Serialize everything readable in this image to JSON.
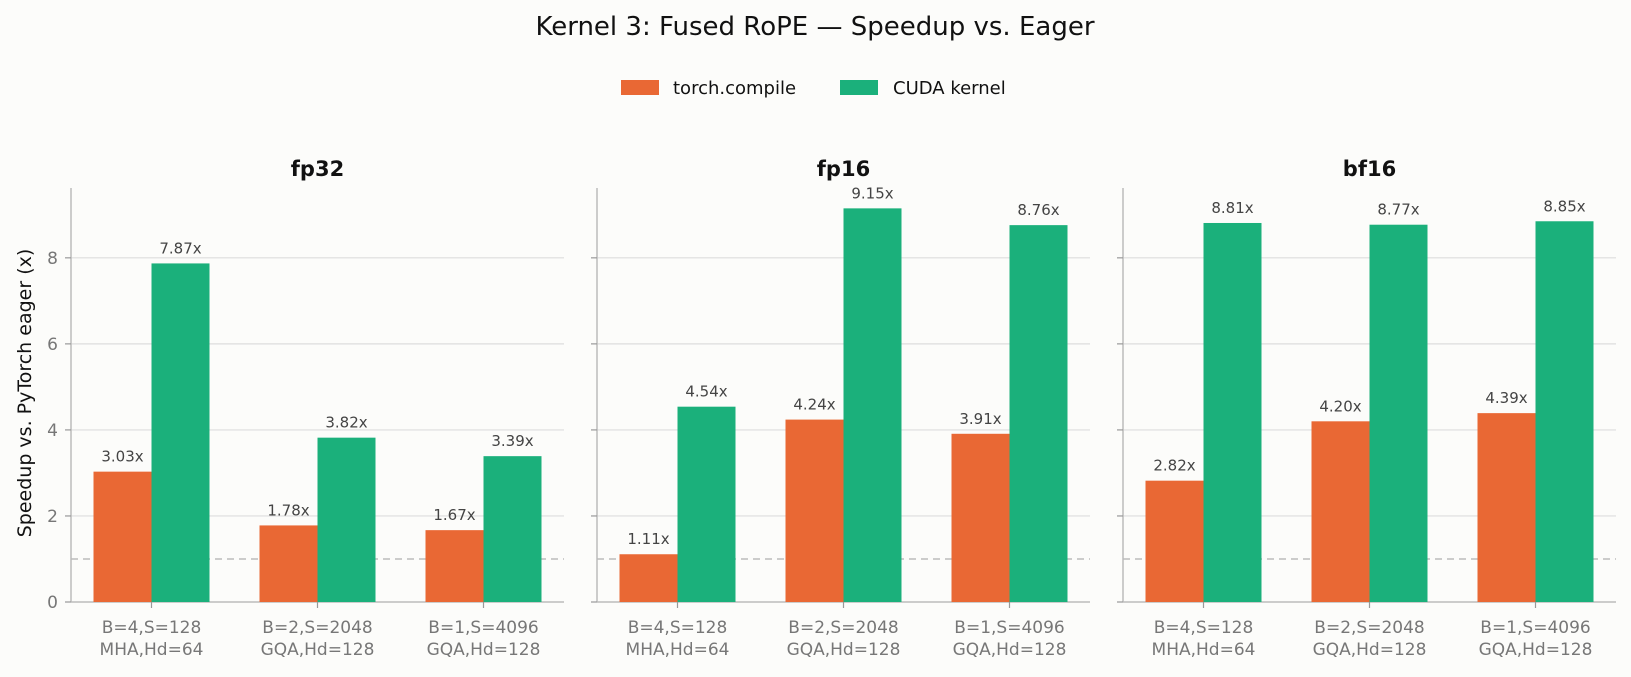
{
  "chart_data": {
    "type": "bar",
    "title": "Kernel 3: Fused RoPE — Speedup vs. Eager",
    "ylabel": "Speedup vs. PyTorch eager (x)",
    "ylim": [
      0,
      9.6
    ],
    "yticks": [
      0,
      2,
      4,
      6,
      8
    ],
    "grid": "y",
    "reference_line": 1.0,
    "legend": {
      "placement": "top-center",
      "entries": [
        "torch.compile",
        "CUDA kernel"
      ]
    },
    "colors": {
      "torch.compile": "#e96834",
      "CUDA kernel": "#1bb07b"
    },
    "categories": [
      [
        "B=4,S=128",
        "MHA,Hd=64"
      ],
      [
        "B=2,S=2048",
        "GQA,Hd=128"
      ],
      [
        "B=1,S=4096",
        "GQA,Hd=128"
      ]
    ],
    "panels": [
      {
        "title": "fp32",
        "series": [
          {
            "name": "torch.compile",
            "values": [
              3.03,
              1.78,
              1.67
            ],
            "labels": [
              "3.03x",
              "1.78x",
              "1.67x"
            ]
          },
          {
            "name": "CUDA kernel",
            "values": [
              7.87,
              3.82,
              3.39
            ],
            "labels": [
              "7.87x",
              "3.82x",
              "3.39x"
            ]
          }
        ]
      },
      {
        "title": "fp16",
        "series": [
          {
            "name": "torch.compile",
            "values": [
              1.11,
              4.24,
              3.91
            ],
            "labels": [
              "1.11x",
              "4.24x",
              "3.91x"
            ]
          },
          {
            "name": "CUDA kernel",
            "values": [
              4.54,
              9.15,
              8.76
            ],
            "labels": [
              "4.54x",
              "9.15x",
              "8.76x"
            ]
          }
        ]
      },
      {
        "title": "bf16",
        "series": [
          {
            "name": "torch.compile",
            "values": [
              2.82,
              4.2,
              4.39
            ],
            "labels": [
              "2.82x",
              "4.20x",
              "4.39x"
            ]
          },
          {
            "name": "CUDA kernel",
            "values": [
              8.81,
              8.77,
              8.85
            ],
            "labels": [
              "8.81x",
              "8.77x",
              "8.85x"
            ]
          }
        ]
      }
    ]
  }
}
